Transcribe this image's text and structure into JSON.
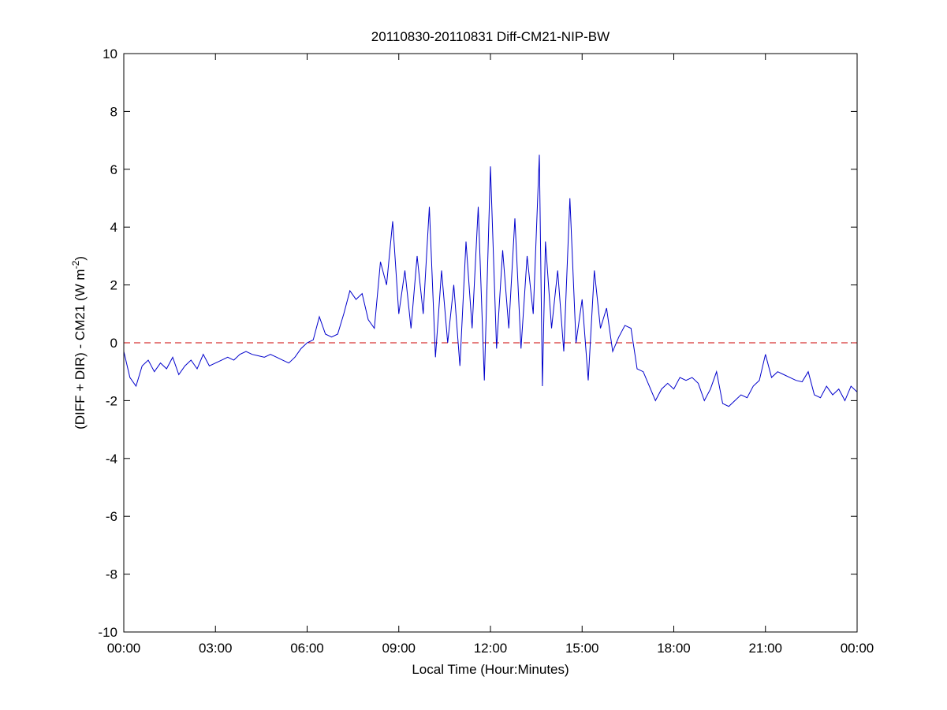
{
  "chart_data": {
    "type": "line",
    "title": "20110830-20110831 Diff-CM21-NIP-BW",
    "xlabel": "Local Time (Hour:Minutes)",
    "ylabel": [
      "(DIFF + DIR) - CM21 (W m",
      "-2",
      ")"
    ],
    "x": [
      0,
      0.2,
      0.4,
      0.6,
      0.8,
      1.0,
      1.2,
      1.4,
      1.6,
      1.8,
      2.0,
      2.2,
      2.4,
      2.6,
      2.8,
      3.0,
      3.2,
      3.4,
      3.6,
      3.8,
      4.0,
      4.2,
      4.4,
      4.6,
      4.8,
      5.0,
      5.2,
      5.4,
      5.6,
      5.8,
      6.0,
      6.2,
      6.4,
      6.6,
      6.8,
      7.0,
      7.2,
      7.4,
      7.6,
      7.8,
      8.0,
      8.2,
      8.4,
      8.6,
      8.8,
      9.0,
      9.2,
      9.4,
      9.6,
      9.8,
      10.0,
      10.2,
      10.4,
      10.6,
      10.8,
      11.0,
      11.2,
      11.4,
      11.6,
      11.8,
      12.0,
      12.2,
      12.4,
      12.6,
      12.8,
      13.0,
      13.2,
      13.4,
      13.6,
      13.7,
      13.8,
      14.0,
      14.2,
      14.4,
      14.6,
      14.8,
      15.0,
      15.2,
      15.4,
      15.6,
      15.8,
      16.0,
      16.2,
      16.4,
      16.6,
      16.8,
      17.0,
      17.2,
      17.4,
      17.6,
      17.8,
      18.0,
      18.2,
      18.4,
      18.6,
      18.8,
      19.0,
      19.2,
      19.4,
      19.6,
      19.8,
      20.0,
      20.2,
      20.4,
      20.6,
      20.8,
      21.0,
      21.2,
      21.4,
      21.6,
      21.8,
      22.0,
      22.2,
      22.4,
      22.6,
      22.8,
      23.0,
      23.2,
      23.4,
      23.6,
      23.8,
      24.0
    ],
    "series": [
      {
        "color": "#0000cc",
        "values": [
          -0.3,
          -1.2,
          -1.5,
          -0.8,
          -0.6,
          -1.0,
          -0.7,
          -0.9,
          -0.5,
          -1.1,
          -0.8,
          -0.6,
          -0.9,
          -0.4,
          -0.8,
          -0.7,
          -0.6,
          -0.5,
          -0.6,
          -0.4,
          -0.3,
          -0.4,
          -0.45,
          -0.5,
          -0.4,
          -0.5,
          -0.6,
          -0.7,
          -0.5,
          -0.2,
          0.0,
          0.1,
          0.9,
          0.3,
          0.2,
          0.3,
          1.0,
          1.8,
          1.5,
          1.7,
          0.8,
          0.5,
          2.8,
          2.0,
          4.2,
          1.0,
          2.5,
          0.5,
          3.0,
          1.0,
          4.7,
          -0.5,
          2.5,
          0.0,
          2.0,
          -0.8,
          3.5,
          0.5,
          4.7,
          -1.3,
          6.1,
          -0.2,
          3.2,
          0.5,
          4.3,
          -0.2,
          3.0,
          1.0,
          6.5,
          -1.5,
          3.5,
          0.5,
          2.5,
          -0.3,
          5.0,
          0.0,
          1.5,
          -1.3,
          2.5,
          0.5,
          1.2,
          -0.3,
          0.2,
          0.6,
          0.5,
          -0.9,
          -1.0,
          -1.5,
          -2.0,
          -1.6,
          -1.4,
          -1.6,
          -1.2,
          -1.3,
          -1.2,
          -1.4,
          -2.0,
          -1.6,
          -1.0,
          -2.1,
          -2.2,
          -2.0,
          -1.8,
          -1.9,
          -1.5,
          -1.3,
          -0.4,
          -1.2,
          -1.0,
          -1.1,
          -1.2,
          -1.3,
          -1.35,
          -1.0,
          -1.8,
          -1.9,
          -1.5,
          -1.8,
          -1.6,
          -2.0,
          -1.5,
          -1.7
        ]
      }
    ],
    "reference_line": {
      "value": 0,
      "color": "#cc0000"
    },
    "xlim": [
      0,
      24
    ],
    "xticks": [
      {
        "value": 0,
        "label": "00:00"
      },
      {
        "value": 3,
        "label": "03:00"
      },
      {
        "value": 6,
        "label": "06:00"
      },
      {
        "value": 9,
        "label": "09:00"
      },
      {
        "value": 12,
        "label": "12:00"
      },
      {
        "value": 15,
        "label": "15:00"
      },
      {
        "value": 18,
        "label": "18:00"
      },
      {
        "value": 21,
        "label": "21:00"
      },
      {
        "value": 24,
        "label": "00:00"
      }
    ],
    "ylim": [
      -10,
      10
    ],
    "yticks": [
      -10,
      -8,
      -6,
      -4,
      -2,
      0,
      2,
      4,
      6,
      8,
      10
    ]
  }
}
